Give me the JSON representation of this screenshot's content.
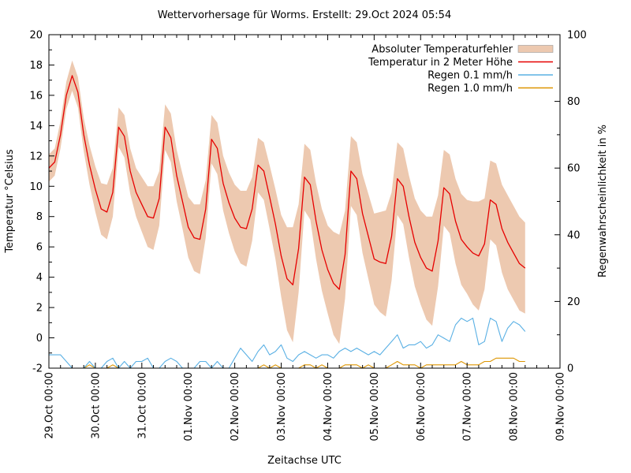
{
  "chart_data": {
    "type": "line",
    "title": "Wettervorhersage für Worms. Erstellt: 29.Oct 2024 05:54",
    "xlabel": "Zeitachse UTC",
    "ylabel_left": "Temperatur °Celsius",
    "ylabel_right": "Regenwahrscheinlichkeit in %",
    "ylim_left": [
      -2,
      20
    ],
    "ylim_right": [
      0,
      100
    ],
    "y_left_major_step": 2,
    "y_right_major_step": 20,
    "x_span_days": 11,
    "step_hours": 3,
    "grid": false,
    "legend_position": "top-right-inside",
    "x_tick_labels": [
      "29.Oct 00:00",
      "30.Oct 00:00",
      "31.Oct 00:00",
      "01.Nov 00:00",
      "02.Nov 00:00",
      "03.Nov 00:00",
      "04.Nov 00:00",
      "05.Nov 00:00",
      "06.Nov 00:00",
      "07.Nov 00:00",
      "08.Nov 00:00",
      "09.Nov 00:00"
    ],
    "legend": [
      {
        "label": "Absoluter Temperaturfehler",
        "type": "band",
        "color": "#edc9b0"
      },
      {
        "label": "Temperatur in 2 Meter Höhe",
        "type": "line",
        "color": "#e60000"
      },
      {
        "label": "Regen 0.1 mm/h",
        "type": "line",
        "color": "#5ab0e4"
      },
      {
        "label": "Regen 1.0 mm/h",
        "type": "line",
        "color": "#dd9500"
      }
    ],
    "series": {
      "temperature_c": [
        11.2,
        11.6,
        13.4,
        16.0,
        17.3,
        16.2,
        13.4,
        11.4,
        9.8,
        8.5,
        8.3,
        9.6,
        13.9,
        13.3,
        11.0,
        9.6,
        8.8,
        8.0,
        7.9,
        9.2,
        13.9,
        13.2,
        10.7,
        9.0,
        7.3,
        6.6,
        6.5,
        8.5,
        13.1,
        12.5,
        10.2,
        8.9,
        7.9,
        7.3,
        7.2,
        8.5,
        11.4,
        11.0,
        9.3,
        7.5,
        5.4,
        3.9,
        3.5,
        5.9,
        10.6,
        10.1,
        7.7,
        5.8,
        4.5,
        3.6,
        3.2,
        5.5,
        11.0,
        10.5,
        8.2,
        6.7,
        5.2,
        5.0,
        4.9,
        6.7,
        10.5,
        10.0,
        8.0,
        6.3,
        5.3,
        4.6,
        4.4,
        6.4,
        9.9,
        9.5,
        7.7,
        6.5,
        6.0,
        5.6,
        5.4,
        6.2,
        9.1,
        8.8,
        7.2,
        6.3,
        5.6,
        4.9,
        4.6
      ],
      "temperature_error_c": [
        0.9,
        0.9,
        0.9,
        0.9,
        1.0,
        1.0,
        1.1,
        1.3,
        1.5,
        1.7,
        1.8,
        1.6,
        1.3,
        1.4,
        1.5,
        1.6,
        1.8,
        2.0,
        2.1,
        1.8,
        1.5,
        1.6,
        1.7,
        1.8,
        2.0,
        2.2,
        2.3,
        1.9,
        1.6,
        1.7,
        1.8,
        2.0,
        2.2,
        2.4,
        2.5,
        2.1,
        1.8,
        1.9,
        2.1,
        2.3,
        2.7,
        3.4,
        3.8,
        2.9,
        2.2,
        2.3,
        2.5,
        2.7,
        2.9,
        3.4,
        3.6,
        2.9,
        2.3,
        2.4,
        2.6,
        2.8,
        3.0,
        3.3,
        3.5,
        2.9,
        2.4,
        2.5,
        2.7,
        2.9,
        3.1,
        3.4,
        3.6,
        3.0,
        2.5,
        2.6,
        2.8,
        3.0,
        3.1,
        3.4,
        3.6,
        3.0,
        2.6,
        2.7,
        2.9,
        3.1,
        3.1,
        3.1,
        3.0
      ],
      "rain_01mmh_pct": [
        4,
        4,
        4,
        2,
        0,
        0,
        0,
        2,
        0,
        0,
        2,
        3,
        0,
        2,
        0,
        2,
        2,
        3,
        0,
        0,
        2,
        3,
        2,
        0,
        0,
        0,
        2,
        2,
        0,
        2,
        0,
        0,
        3,
        6,
        4,
        2,
        5,
        7,
        4,
        5,
        7,
        3,
        2,
        4,
        5,
        4,
        3,
        4,
        4,
        3,
        5,
        6,
        5,
        6,
        5,
        4,
        5,
        4,
        6,
        8,
        10,
        6,
        7,
        7,
        8,
        6,
        7,
        10,
        9,
        8,
        13,
        15,
        14,
        15,
        7,
        8,
        15,
        14,
        8,
        12,
        14,
        13,
        11
      ],
      "rain_10mmh_pct": [
        0,
        0,
        0,
        0,
        0,
        0,
        0,
        1,
        0,
        0,
        0,
        1,
        0,
        0,
        0,
        0,
        0,
        0,
        0,
        0,
        0,
        0,
        0,
        0,
        0,
        0,
        0,
        0,
        0,
        0,
        0,
        0,
        0,
        0,
        0,
        0,
        0,
        1,
        0,
        1,
        0,
        0,
        0,
        0,
        1,
        1,
        0,
        1,
        0,
        0,
        0,
        1,
        1,
        1,
        0,
        1,
        0,
        0,
        0,
        1,
        2,
        1,
        1,
        1,
        0,
        1,
        1,
        1,
        1,
        1,
        1,
        2,
        1,
        1,
        1,
        2,
        2,
        3,
        3,
        3,
        3,
        2,
        2
      ]
    }
  }
}
